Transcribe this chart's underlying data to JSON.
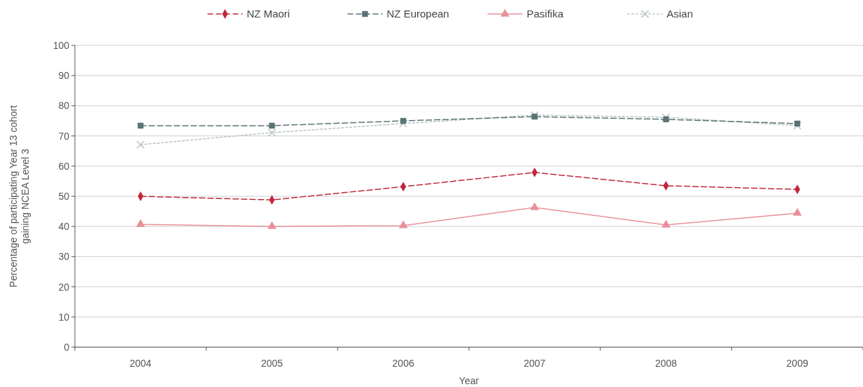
{
  "chart_data": {
    "type": "line",
    "xlabel": "Year",
    "ylabel": "Percentage of participating Year 13 cohort\ngaining NCEA Level 3",
    "categories": [
      "2004",
      "2005",
      "2006",
      "2007",
      "2008",
      "2009"
    ],
    "series": [
      {
        "name": "NZ Maori",
        "color": "#c0273a",
        "marker": "diamond",
        "line_style": "dashed",
        "values": [
          50.0,
          48.8,
          53.2,
          57.9,
          53.5,
          52.3
        ]
      },
      {
        "name": "NZ European",
        "color": "#5a7374",
        "marker": "square",
        "line_style": "dashed",
        "values": [
          73.4,
          73.4,
          75.0,
          76.4,
          75.5,
          74.1
        ]
      },
      {
        "name": "Pasifika",
        "color": "#e8909a",
        "marker": "triangle",
        "line_style": "solid",
        "values": [
          40.7,
          40.0,
          40.3,
          46.3,
          40.5,
          44.4
        ]
      },
      {
        "name": "Asian",
        "color": "#b8c2c6",
        "marker": "cross",
        "line_style": "dotted",
        "values": [
          67.1,
          71.1,
          74.1,
          76.9,
          76.2,
          73.4
        ]
      }
    ],
    "ylim": [
      0,
      100
    ],
    "yticks": [
      0,
      10,
      20,
      30,
      40,
      50,
      60,
      70,
      80,
      90,
      100
    ],
    "grid": "y",
    "legend": "top"
  }
}
